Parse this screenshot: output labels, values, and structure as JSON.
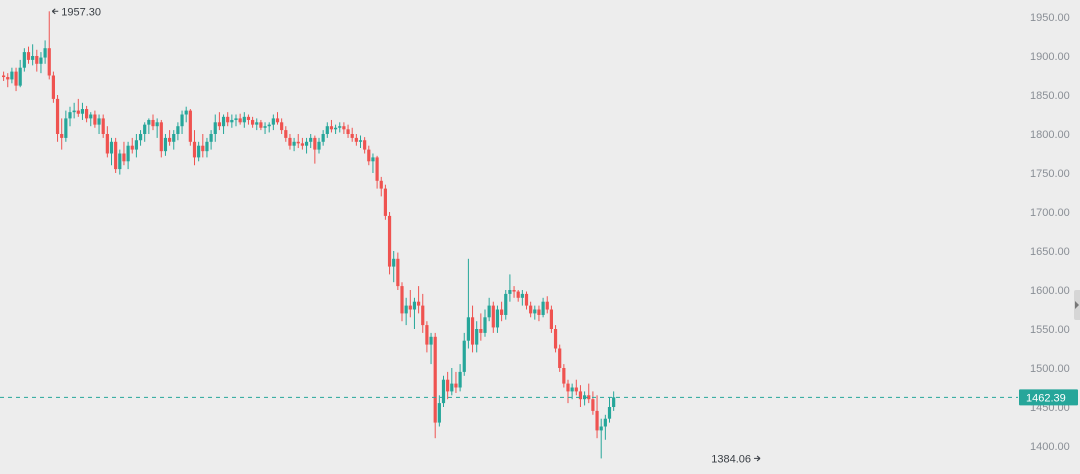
{
  "chart_data": {
    "type": "candlestick",
    "ylim": [
      1380,
      1970
    ],
    "y_ticks": [
      1950,
      1900,
      1850,
      1800,
      1750,
      1700,
      1650,
      1600,
      1550,
      1500,
      1450,
      1400
    ],
    "y_tick_labels": [
      "1950.00",
      "1900.00",
      "1850.00",
      "1800.00",
      "1750.00",
      "1700.00",
      "1650.00",
      "1600.00",
      "1550.00",
      "1500.00",
      "1450.00",
      "1400.00"
    ],
    "grid": false,
    "up_color": "#26a69a",
    "down_color": "#ef5350",
    "last_price": 1462.39,
    "last_price_label": "1462.39",
    "last_price_color": "#26a69a",
    "annotations": [
      {
        "label": "1957.30",
        "value": 1957.3,
        "side": "right-of-candle",
        "candle_index": 11
      },
      {
        "label": "1384.06",
        "value": 1384.06,
        "side": "left-of-candle",
        "candle_index": 183
      }
    ],
    "candles": [
      [
        1875,
        1880,
        1868,
        1873
      ],
      [
        1873,
        1878,
        1860,
        1870
      ],
      [
        1870,
        1885,
        1865,
        1880
      ],
      [
        1880,
        1885,
        1855,
        1862
      ],
      [
        1862,
        1895,
        1860,
        1885
      ],
      [
        1885,
        1910,
        1880,
        1905
      ],
      [
        1905,
        1912,
        1890,
        1895
      ],
      [
        1895,
        1915,
        1888,
        1900
      ],
      [
        1900,
        1908,
        1880,
        1890
      ],
      [
        1890,
        1905,
        1878,
        1898
      ],
      [
        1898,
        1920,
        1890,
        1910
      ],
      [
        1910,
        1957.3,
        1870,
        1875
      ],
      [
        1875,
        1880,
        1840,
        1845
      ],
      [
        1845,
        1850,
        1790,
        1800
      ],
      [
        1800,
        1820,
        1780,
        1795
      ],
      [
        1795,
        1830,
        1790,
        1820
      ],
      [
        1820,
        1835,
        1810,
        1828
      ],
      [
        1828,
        1840,
        1820,
        1830
      ],
      [
        1830,
        1845,
        1822,
        1826
      ],
      [
        1826,
        1840,
        1818,
        1832
      ],
      [
        1832,
        1836,
        1815,
        1820
      ],
      [
        1820,
        1828,
        1810,
        1825
      ],
      [
        1825,
        1830,
        1808,
        1812
      ],
      [
        1812,
        1825,
        1800,
        1820
      ],
      [
        1820,
        1825,
        1795,
        1800
      ],
      [
        1800,
        1810,
        1770,
        1775
      ],
      [
        1775,
        1795,
        1760,
        1790
      ],
      [
        1790,
        1795,
        1750,
        1755
      ],
      [
        1755,
        1780,
        1748,
        1775
      ],
      [
        1775,
        1790,
        1760,
        1765
      ],
      [
        1765,
        1790,
        1755,
        1785
      ],
      [
        1785,
        1795,
        1775,
        1780
      ],
      [
        1780,
        1800,
        1770,
        1792
      ],
      [
        1792,
        1805,
        1785,
        1800
      ],
      [
        1800,
        1815,
        1790,
        1812
      ],
      [
        1812,
        1820,
        1800,
        1818
      ],
      [
        1818,
        1825,
        1805,
        1810
      ],
      [
        1810,
        1820,
        1795,
        1815
      ],
      [
        1815,
        1818,
        1770,
        1778
      ],
      [
        1778,
        1800,
        1772,
        1795
      ],
      [
        1795,
        1805,
        1785,
        1790
      ],
      [
        1790,
        1805,
        1780,
        1800
      ],
      [
        1800,
        1815,
        1792,
        1810
      ],
      [
        1810,
        1830,
        1800,
        1825
      ],
      [
        1825,
        1835,
        1815,
        1830
      ],
      [
        1830,
        1832,
        1785,
        1790
      ],
      [
        1790,
        1805,
        1760,
        1770
      ],
      [
        1770,
        1790,
        1765,
        1785
      ],
      [
        1785,
        1800,
        1770,
        1778
      ],
      [
        1778,
        1795,
        1770,
        1790
      ],
      [
        1790,
        1805,
        1780,
        1800
      ],
      [
        1800,
        1825,
        1790,
        1815
      ],
      [
        1815,
        1828,
        1805,
        1810
      ],
      [
        1810,
        1825,
        1800,
        1822
      ],
      [
        1822,
        1828,
        1810,
        1815
      ],
      [
        1815,
        1825,
        1808,
        1818
      ],
      [
        1818,
        1825,
        1810,
        1820
      ],
      [
        1820,
        1826,
        1812,
        1815
      ],
      [
        1815,
        1828,
        1808,
        1822
      ],
      [
        1822,
        1825,
        1812,
        1818
      ],
      [
        1818,
        1822,
        1808,
        1812
      ],
      [
        1812,
        1820,
        1805,
        1815
      ],
      [
        1815,
        1818,
        1805,
        1808
      ],
      [
        1808,
        1815,
        1800,
        1810
      ],
      [
        1810,
        1815,
        1802,
        1812
      ],
      [
        1812,
        1825,
        1805,
        1820
      ],
      [
        1820,
        1828,
        1812,
        1815
      ],
      [
        1815,
        1820,
        1800,
        1805
      ],
      [
        1805,
        1810,
        1790,
        1795
      ],
      [
        1795,
        1800,
        1780,
        1785
      ],
      [
        1785,
        1795,
        1778,
        1790
      ],
      [
        1790,
        1800,
        1782,
        1788
      ],
      [
        1788,
        1795,
        1780,
        1785
      ],
      [
        1785,
        1795,
        1775,
        1790
      ],
      [
        1790,
        1800,
        1782,
        1795
      ],
      [
        1795,
        1798,
        1762,
        1780
      ],
      [
        1780,
        1795,
        1775,
        1790
      ],
      [
        1790,
        1805,
        1785,
        1800
      ],
      [
        1800,
        1815,
        1795,
        1810
      ],
      [
        1810,
        1818,
        1802,
        1806
      ],
      [
        1806,
        1812,
        1800,
        1808
      ],
      [
        1808,
        1815,
        1802,
        1810
      ],
      [
        1810,
        1815,
        1800,
        1806
      ],
      [
        1806,
        1812,
        1795,
        1800
      ],
      [
        1800,
        1808,
        1790,
        1795
      ],
      [
        1795,
        1800,
        1785,
        1790
      ],
      [
        1790,
        1798,
        1782,
        1792
      ],
      [
        1792,
        1796,
        1775,
        1780
      ],
      [
        1780,
        1785,
        1760,
        1765
      ],
      [
        1765,
        1775,
        1750,
        1770
      ],
      [
        1770,
        1772,
        1730,
        1740
      ],
      [
        1740,
        1745,
        1720,
        1730
      ],
      [
        1730,
        1735,
        1690,
        1695
      ],
      [
        1695,
        1700,
        1620,
        1630
      ],
      [
        1630,
        1650,
        1610,
        1640
      ],
      [
        1640,
        1648,
        1600,
        1605
      ],
      [
        1605,
        1610,
        1560,
        1570
      ],
      [
        1570,
        1590,
        1555,
        1580
      ],
      [
        1580,
        1600,
        1565,
        1575
      ],
      [
        1575,
        1590,
        1550,
        1585
      ],
      [
        1585,
        1605,
        1570,
        1580
      ],
      [
        1580,
        1595,
        1545,
        1555
      ],
      [
        1555,
        1560,
        1520,
        1530
      ],
      [
        1530,
        1545,
        1505,
        1540
      ],
      [
        1540,
        1545,
        1410,
        1430
      ],
      [
        1430,
        1465,
        1425,
        1455
      ],
      [
        1455,
        1490,
        1450,
        1485
      ],
      [
        1485,
        1495,
        1460,
        1470
      ],
      [
        1470,
        1500,
        1465,
        1480
      ],
      [
        1480,
        1495,
        1468,
        1475
      ],
      [
        1475,
        1505,
        1470,
        1495
      ],
      [
        1495,
        1545,
        1490,
        1535
      ],
      [
        1535,
        1640,
        1525,
        1565
      ],
      [
        1565,
        1580,
        1520,
        1530
      ],
      [
        1530,
        1560,
        1520,
        1550
      ],
      [
        1550,
        1570,
        1535,
        1545
      ],
      [
        1545,
        1575,
        1540,
        1565
      ],
      [
        1565,
        1590,
        1560,
        1580
      ],
      [
        1580,
        1585,
        1545,
        1552
      ],
      [
        1552,
        1580,
        1545,
        1575
      ],
      [
        1575,
        1585,
        1560,
        1568
      ],
      [
        1568,
        1600,
        1562,
        1595
      ],
      [
        1595,
        1620,
        1585,
        1600
      ],
      [
        1600,
        1605,
        1590,
        1598
      ],
      [
        1598,
        1600,
        1585,
        1590
      ],
      [
        1590,
        1600,
        1580,
        1595
      ],
      [
        1595,
        1598,
        1575,
        1580
      ],
      [
        1580,
        1585,
        1565,
        1570
      ],
      [
        1570,
        1580,
        1562,
        1575
      ],
      [
        1575,
        1580,
        1560,
        1568
      ],
      [
        1568,
        1590,
        1565,
        1585
      ],
      [
        1585,
        1592,
        1570,
        1575
      ],
      [
        1575,
        1580,
        1545,
        1550
      ],
      [
        1550,
        1555,
        1520,
        1525
      ],
      [
        1525,
        1530,
        1495,
        1500
      ],
      [
        1500,
        1505,
        1475,
        1480
      ],
      [
        1480,
        1485,
        1455,
        1470
      ],
      [
        1470,
        1480,
        1460,
        1475
      ],
      [
        1475,
        1485,
        1465,
        1470
      ],
      [
        1470,
        1478,
        1450,
        1460
      ],
      [
        1460,
        1470,
        1452,
        1465
      ],
      [
        1465,
        1480,
        1455,
        1460
      ],
      [
        1460,
        1470,
        1440,
        1445
      ],
      [
        1445,
        1465,
        1410,
        1420
      ],
      [
        1420,
        1435,
        1384.06,
        1425
      ],
      [
        1425,
        1440,
        1408,
        1435
      ],
      [
        1435,
        1462,
        1430,
        1450
      ],
      [
        1450,
        1470,
        1445,
        1462.39
      ]
    ]
  }
}
